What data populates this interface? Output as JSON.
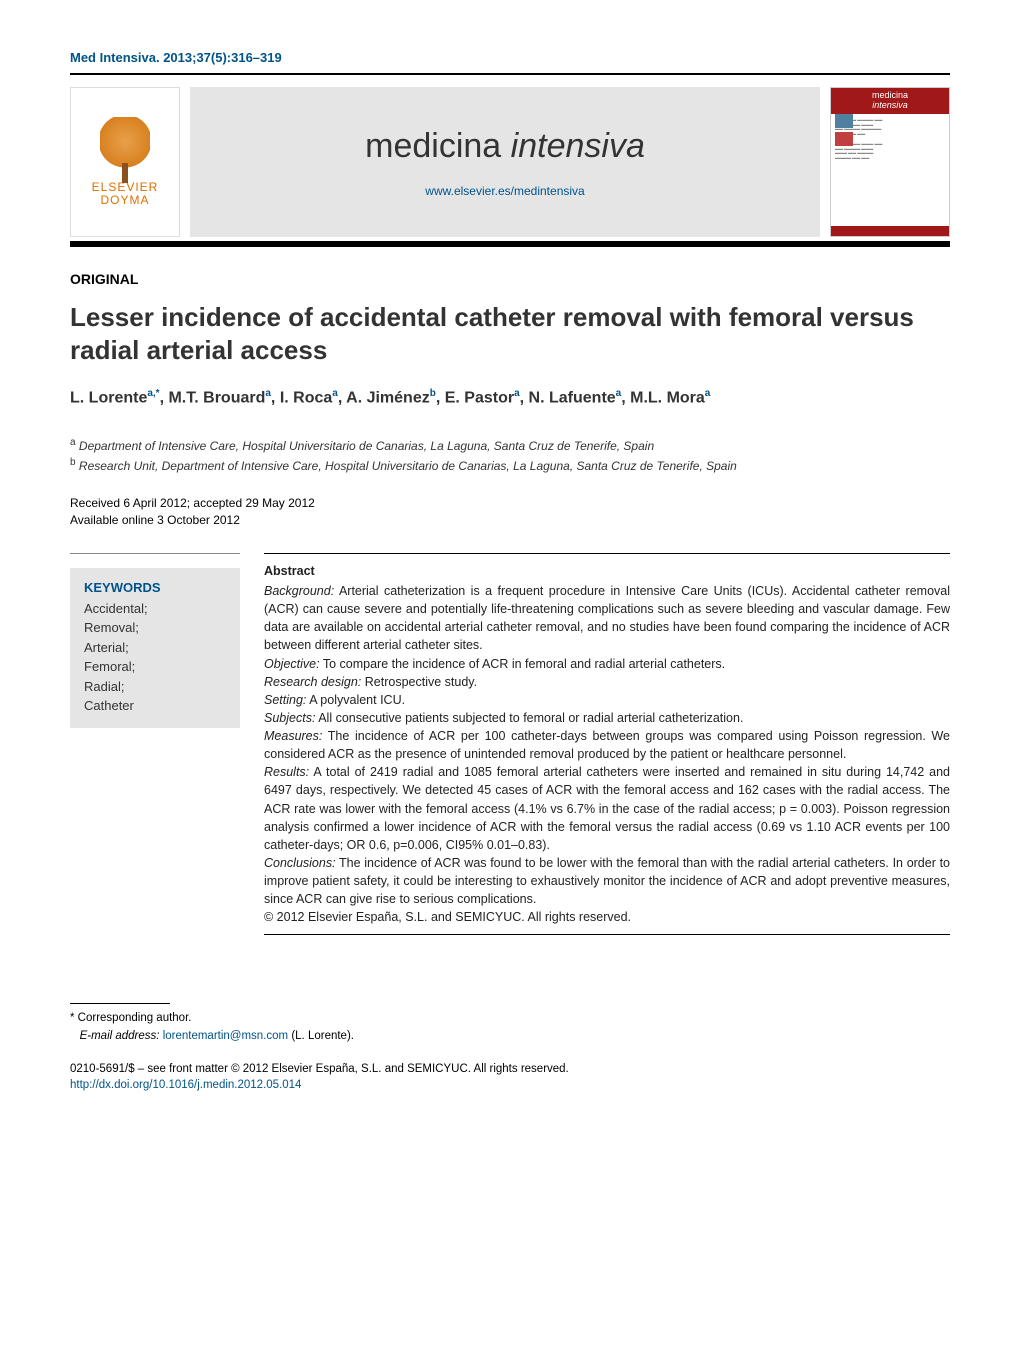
{
  "journal_ref": "Med Intensiva. 2013;37(5):316–319",
  "publisher": {
    "name_line1": "ELSEVIER",
    "name_line2": "DOYMA"
  },
  "journal_header": {
    "title_plain": "medicina ",
    "title_italic": "intensiva",
    "url": "www.elsevier.es/medintensiva"
  },
  "cover": {
    "header_line1": "medicina",
    "header_line2": "intensiva"
  },
  "section_label": "ORIGINAL",
  "article_title": "Lesser incidence of accidental catheter removal with femoral versus radial arterial access",
  "authors_html": "L. Lorente<sup>a,*</sup>, M.T. Brouard<sup>a</sup>, I. Roca<sup>a</sup>, A. Jiménez<sup>b</sup>, E. Pastor<sup>a</sup>, N. Lafuente<sup>a</sup>, M.L. Mora<sup>a</sup>",
  "affiliations": {
    "a": "Department of Intensive Care, Hospital Universitario de Canarias, La Laguna, Santa Cruz de Tenerife, Spain",
    "b": "Research Unit, Department of Intensive Care, Hospital Universitario de Canarias, La Laguna, Santa Cruz de Tenerife, Spain"
  },
  "dates": {
    "received_accepted": "Received 6 April 2012; accepted 29 May 2012",
    "online": "Available online 3 October 2012"
  },
  "keywords": {
    "heading": "KEYWORDS",
    "items": [
      "Accidental;",
      "Removal;",
      "Arterial;",
      "Femoral;",
      "Radial;",
      "Catheter"
    ]
  },
  "abstract": {
    "heading": "Abstract",
    "background_label": "Background:",
    "background": "Arterial catheterization is a frequent procedure in Intensive Care Units (ICUs). Accidental catheter removal (ACR) can cause severe and potentially life-threatening complications such as severe bleeding and vascular damage. Few data are available on accidental arterial catheter removal, and no studies have been found comparing the incidence of ACR between different arterial catheter sites.",
    "objective_label": "Objective:",
    "objective": "To compare the incidence of ACR in femoral and radial arterial catheters.",
    "research_design_label": "Research design:",
    "research_design": "Retrospective study.",
    "setting_label": "Setting:",
    "setting": "A polyvalent ICU.",
    "subjects_label": "Subjects:",
    "subjects": "All consecutive patients subjected to femoral or radial arterial catheterization.",
    "measures_label": "Measures:",
    "measures": "The incidence of ACR per 100 catheter-days between groups was compared using Poisson regression. We considered ACR as the presence of unintended removal produced by the patient or healthcare personnel.",
    "results_label": "Results:",
    "results": "A total of 2419 radial and 1085 femoral arterial catheters were inserted and remained in situ during 14,742 and 6497 days, respectively. We detected 45 cases of ACR with the femoral access and 162 cases with the radial access. The ACR rate was lower with the femoral access (4.1% vs 6.7% in the case of the radial access; p = 0.003). Poisson regression analysis confirmed a lower incidence of ACR with the femoral versus the radial access (0.69 vs 1.10 ACR events per 100 catheter-days; OR 0.6, p=0.006, CI95% 0.01–0.83).",
    "conclusions_label": "Conclusions:",
    "conclusions": "The incidence of ACR was found to be lower with the femoral than with the radial arterial catheters. In order to improve patient safety, it could be interesting to exhaustively monitor the incidence of ACR and adopt preventive measures, since ACR can give rise to serious complications.",
    "copyright": "© 2012 Elsevier España, S.L. and SEMICYUC. All rights reserved."
  },
  "corresponding": {
    "label": "* Corresponding author.",
    "email_label": "E-mail address:",
    "email": "lorentemartin@msn.com",
    "email_name": "(L. Lorente)."
  },
  "front_matter": {
    "line": "0210-5691/$ – see front matter © 2012 Elsevier España, S.L. and SEMICYUC. All rights reserved.",
    "doi": "http://dx.doi.org/10.1016/j.medin.2012.05.014"
  },
  "colors": {
    "link_blue": "#00538a",
    "banner_gray": "#e5e5e5",
    "cover_red": "#a01818"
  }
}
